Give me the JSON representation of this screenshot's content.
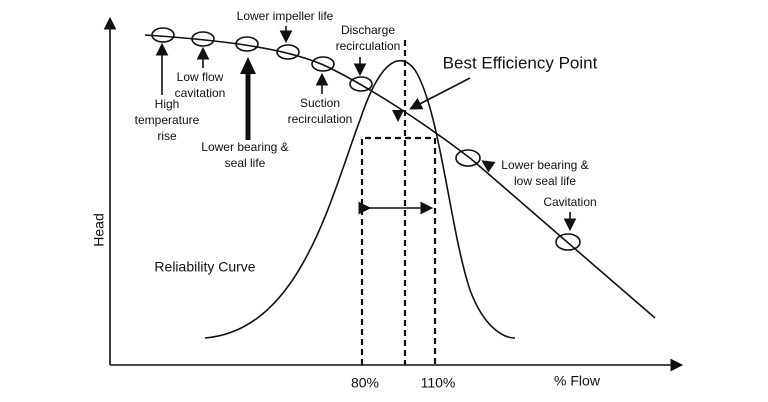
{
  "axis": {
    "y_label": "Head",
    "x_label": "% Flow",
    "x_marks": [
      "80%",
      "110%"
    ]
  },
  "best_efficiency_point": "Best Efficiency Point",
  "reliability_curve": "Reliability Curve",
  "annotations": {
    "lower_impeller_life": [
      "Lower impeller life"
    ],
    "discharge_recirculation": [
      "Discharge",
      "recirculation"
    ],
    "low_flow_cavitation": [
      "Low flow",
      "cavitation"
    ],
    "high_temperature_rise": [
      "High",
      "temperature",
      "rise"
    ],
    "suction_recirculation": [
      "Suction",
      "recirculation"
    ],
    "lower_bearing_seal_life": [
      "Lower bearing &",
      "seal life"
    ],
    "lower_bearing_low_seal_life": [
      "Lower bearing &",
      "low seal life"
    ],
    "cavitation": [
      "Cavitation"
    ]
  }
}
